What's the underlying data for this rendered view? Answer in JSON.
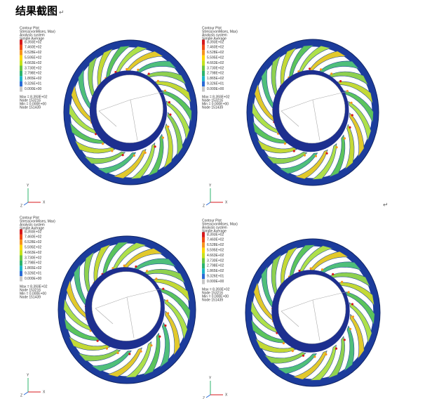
{
  "title": "结果截图",
  "return_mark": "↵",
  "panels": [
    {
      "header": [
        "Contour Plot",
        "Stress(vonMises, Max)",
        "Analysis system",
        "Simple Average"
      ],
      "legend": [
        "8.393E+02",
        "7.460E+02",
        "6.528E+02",
        "5.595E+02",
        "4.663E+02",
        "3.730E+02",
        "2.798E+02",
        "1.865E+02",
        "9.326E+01",
        "0.000E+00"
      ],
      "footer": [
        "Max = 8.393E+02",
        "Node 153216",
        "Min = 0.000E+00",
        "Node 151439"
      ],
      "axes": [
        "Y",
        "Z",
        "X"
      ]
    },
    {
      "header": [
        "Contour Plot",
        "Stress(vonMises, Max)",
        "Analysis system",
        "Simple Average"
      ],
      "legend": [
        "8.393E+02",
        "7.460E+02",
        "6.528E+02",
        "5.595E+02",
        "4.663E+02",
        "3.730E+02",
        "2.798E+02",
        "1.865E+02",
        "9.326E+01",
        "0.000E+00"
      ],
      "footer": [
        "Max = 8.393E+02",
        "Node 153216",
        "Min = 0.000E+00",
        "Node 151439"
      ],
      "axes": [
        "Y",
        "Z",
        "X"
      ]
    },
    {
      "header": [
        "Contour Plot",
        "Stress(vonMises, Max)",
        "Analysis system",
        "Simple Average"
      ],
      "legend": [
        "8.393E+02",
        "7.460E+02",
        "6.528E+02",
        "5.595E+02",
        "4.663E+02",
        "3.730E+02",
        "2.798E+02",
        "1.865E+02",
        "9.326E+01",
        "0.000E+00"
      ],
      "footer": [
        "Max = 8.393E+02",
        "Node 153216",
        "Min = 0.000E+00",
        "Node 151439"
      ],
      "axes": [
        "Y",
        "Z",
        "X"
      ]
    },
    {
      "header": [
        "Contour Plot",
        "Stress(vonMises, Max)",
        "Analysis system",
        "Simple Average"
      ],
      "legend": [
        "8.393E+02",
        "7.460E+02",
        "6.528E+02",
        "5.595E+02",
        "4.663E+02",
        "3.730E+02",
        "2.798E+02",
        "1.865E+02",
        "9.326E+01",
        "0.000E+00"
      ],
      "footer": [
        "Max = 8.393E+02",
        "Node 153216",
        "Min = 0.000E+00",
        "Node 151439"
      ],
      "axes": [
        "Y",
        "Z",
        "X"
      ]
    }
  ]
}
